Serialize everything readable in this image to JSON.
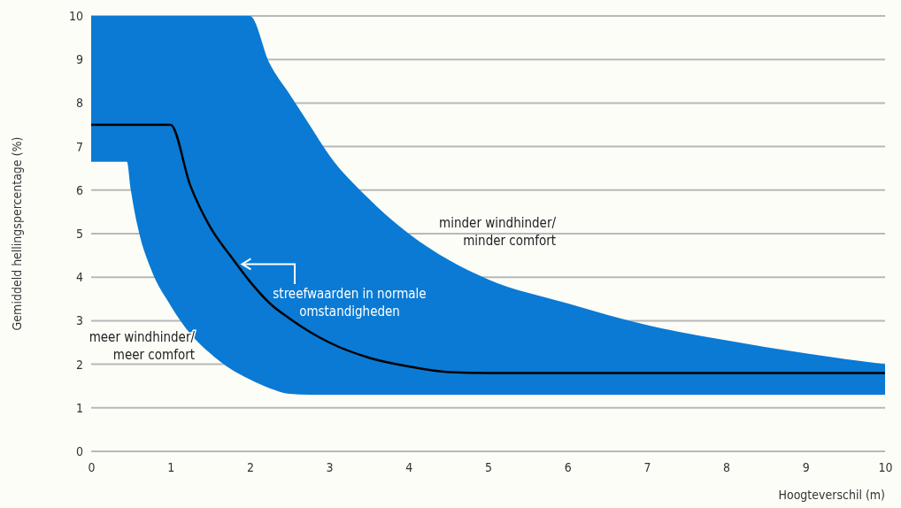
{
  "chart_data": {
    "type": "line",
    "ylabel": "Gemiddeld hellingspercentage (%)",
    "xlabel": "Hoogteverschil (m)",
    "x": [
      0,
      0.45,
      0.5,
      0.6,
      0.75,
      1,
      1.25,
      1.5,
      1.75,
      2,
      2.25,
      2.5,
      2.75,
      3,
      3.5,
      4,
      4.5,
      5,
      6,
      7,
      8,
      9,
      10
    ],
    "series": [
      {
        "color": "#000000",
        "values": [
          7.5,
          7.5,
          7.5,
          7.5,
          7.5,
          7.5,
          6.1,
          5.15,
          4.5,
          3.9,
          3.4,
          3.05,
          2.75,
          2.5,
          2.15,
          1.95,
          1.82,
          1.8,
          1.8,
          1.8,
          1.8,
          1.8,
          1.8
        ],
        "lower": [
          6.65,
          6.65,
          6.0,
          5.05,
          4.2,
          3.35,
          2.7,
          2.25,
          1.9,
          1.65,
          1.45,
          1.32,
          1.3,
          1.3,
          1.3,
          1.3,
          1.3,
          1.3,
          1.3,
          1.3,
          1.3,
          1.3,
          1.3
        ],
        "upper": [
          10,
          10,
          10,
          10,
          10,
          10,
          10,
          10,
          10,
          10,
          8.9,
          8.2,
          7.5,
          6.8,
          5.8,
          5.0,
          4.4,
          3.95,
          3.4,
          2.9,
          2.55,
          2.25,
          2.0
        ]
      }
    ],
    "xlim": [
      0,
      10
    ],
    "ylim": [
      0,
      10
    ],
    "xticks": [
      0,
      1,
      2,
      3,
      4,
      5,
      6,
      7,
      8,
      9,
      10
    ],
    "yticks": [
      0,
      1,
      2,
      3,
      4,
      5,
      6,
      7,
      8,
      9,
      10
    ],
    "grid": "y",
    "annotations": [
      "minder windhinder/\nminder comfort",
      {
        "text": "streefwaarden in normale\nomstandigheden",
        "x": 1.9,
        "y": 4.3
      },
      "meer windhinder/\nmeer comfort"
    ]
  }
}
